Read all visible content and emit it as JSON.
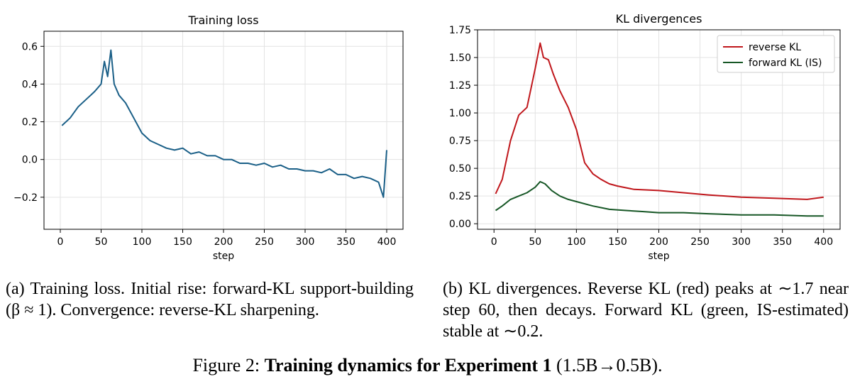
{
  "figure": {
    "caption_prefix": "Figure 2: ",
    "caption_bold": "Training dynamics for Experiment 1",
    "caption_rest": " (1.5B→0.5B)."
  },
  "panel_a": {
    "caption": "(a) Training loss. Initial rise: forward-KL support-building (β ≈ 1). Convergence: reverse-KL sharpening."
  },
  "panel_b": {
    "caption": "(b) KL divergences. Reverse KL (red) peaks at ∼1.7 near step 60, then decays. Forward KL (green, IS-estimated) stable at ∼0.2."
  },
  "chart_data": [
    {
      "type": "line",
      "title": "Training loss",
      "xlabel": "step",
      "ylabel": "",
      "xlim": [
        -20,
        420
      ],
      "ylim": [
        -0.37,
        0.68
      ],
      "xticks": [
        0,
        50,
        100,
        150,
        200,
        250,
        300,
        350,
        400
      ],
      "yticks": [
        -0.2,
        0.0,
        0.2,
        0.4,
        0.6
      ],
      "ytick_labels": [
        "−0.2",
        "0.0",
        "0.2",
        "0.4",
        "0.6"
      ],
      "grid": true,
      "legend": "none",
      "series": [
        {
          "color": "#1a5f87",
          "x": [
            2,
            12,
            22,
            32,
            42,
            50,
            54,
            58,
            62,
            66,
            72,
            80,
            90,
            100,
            110,
            120,
            130,
            140,
            150,
            160,
            170,
            180,
            190,
            200,
            210,
            220,
            230,
            240,
            250,
            260,
            270,
            280,
            290,
            300,
            310,
            320,
            330,
            340,
            350,
            360,
            370,
            380,
            390,
            396,
            400
          ],
          "y": [
            0.18,
            0.22,
            0.28,
            0.32,
            0.36,
            0.4,
            0.52,
            0.44,
            0.58,
            0.4,
            0.34,
            0.3,
            0.22,
            0.14,
            0.1,
            0.08,
            0.06,
            0.05,
            0.06,
            0.03,
            0.04,
            0.02,
            0.02,
            0.0,
            0.0,
            -0.02,
            -0.02,
            -0.03,
            -0.02,
            -0.04,
            -0.03,
            -0.05,
            -0.05,
            -0.06,
            -0.06,
            -0.07,
            -0.05,
            -0.08,
            -0.08,
            -0.1,
            -0.09,
            -0.1,
            -0.12,
            -0.2,
            0.05
          ]
        }
      ]
    },
    {
      "type": "line",
      "title": "KL divergences",
      "xlabel": "step",
      "ylabel": "",
      "xlim": [
        -20,
        420
      ],
      "ylim": [
        -0.05,
        1.75
      ],
      "xticks": [
        0,
        50,
        100,
        150,
        200,
        250,
        300,
        350,
        400
      ],
      "yticks": [
        0.0,
        0.25,
        0.5,
        0.75,
        1.0,
        1.25,
        1.5,
        1.75
      ],
      "ytick_labels": [
        "0.00",
        "0.25",
        "0.50",
        "0.75",
        "1.00",
        "1.25",
        "1.50",
        "1.75"
      ],
      "grid": true,
      "legend": "top-right",
      "series": [
        {
          "name": "reverse KL",
          "color": "#c0171c",
          "x": [
            2,
            10,
            20,
            30,
            40,
            50,
            56,
            60,
            66,
            72,
            80,
            90,
            100,
            110,
            120,
            130,
            140,
            150,
            170,
            200,
            230,
            260,
            300,
            340,
            380,
            400
          ],
          "y": [
            0.27,
            0.4,
            0.75,
            0.98,
            1.05,
            1.4,
            1.63,
            1.5,
            1.48,
            1.35,
            1.2,
            1.05,
            0.85,
            0.55,
            0.45,
            0.4,
            0.36,
            0.34,
            0.31,
            0.3,
            0.28,
            0.26,
            0.24,
            0.23,
            0.22,
            0.24
          ]
        },
        {
          "name": "forward KL (IS)",
          "color": "#175726",
          "x": [
            2,
            10,
            20,
            30,
            40,
            50,
            56,
            62,
            70,
            80,
            90,
            100,
            120,
            140,
            160,
            180,
            200,
            230,
            260,
            300,
            340,
            380,
            400
          ],
          "y": [
            0.12,
            0.16,
            0.22,
            0.25,
            0.28,
            0.33,
            0.38,
            0.36,
            0.3,
            0.25,
            0.22,
            0.2,
            0.16,
            0.13,
            0.12,
            0.11,
            0.1,
            0.1,
            0.09,
            0.08,
            0.08,
            0.07,
            0.07
          ]
        }
      ]
    }
  ]
}
